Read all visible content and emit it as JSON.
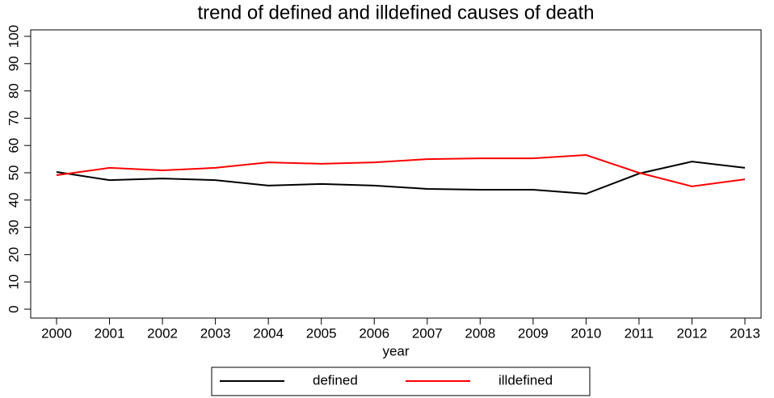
{
  "chart_data": {
    "type": "line",
    "title": "trend of defined and illdefined causes of death",
    "x_label": "year",
    "categories": [
      "2000",
      "2001",
      "2002",
      "2003",
      "2004",
      "2005",
      "2006",
      "2007",
      "2008",
      "2009",
      "2010",
      "2011",
      "2012",
      "2013"
    ],
    "series": [
      {
        "name": "defined",
        "color": "#000000",
        "values": [
          50.3,
          47.3,
          47.9,
          47.3,
          45.3,
          45.9,
          45.3,
          44.1,
          43.8,
          43.8,
          42.3,
          49.7,
          54.1,
          51.8
        ]
      },
      {
        "name": "illdefined",
        "color": "#ff0000",
        "values": [
          49.1,
          51.8,
          50.9,
          51.8,
          53.8,
          53.3,
          53.8,
          55.0,
          55.3,
          55.3,
          56.5,
          50.0,
          45.0,
          47.6
        ]
      }
    ],
    "ylim": [
      0,
      100
    ],
    "yticks": [
      0,
      10,
      20,
      30,
      40,
      50,
      60,
      70,
      80,
      90,
      100
    ],
    "legend": "bottom"
  }
}
